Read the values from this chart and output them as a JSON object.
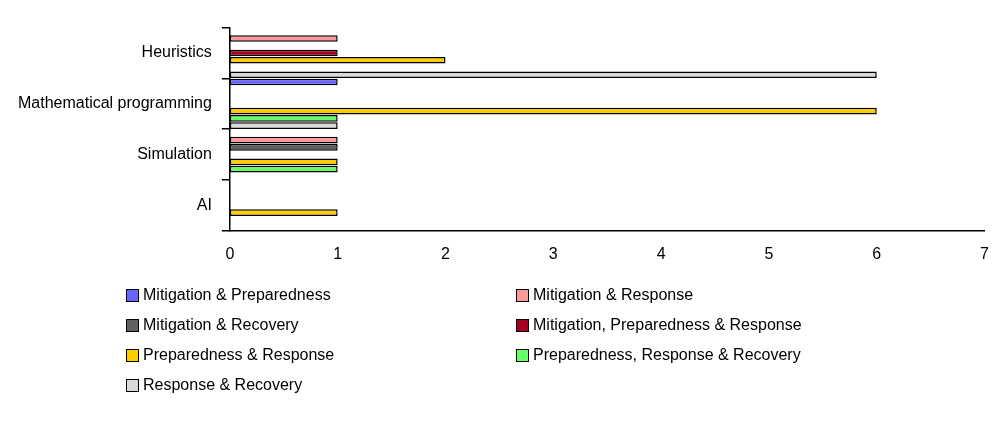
{
  "chart_data": {
    "type": "bar",
    "orientation": "horizontal",
    "categories": [
      "Heuristics",
      "Mathematical programming",
      "Simulation",
      "AI"
    ],
    "series": [
      {
        "name": "Mitigation & Preparedness",
        "color": "#6666ff",
        "values": [
          0,
          1,
          0,
          0
        ]
      },
      {
        "name": "Mitigation & Response",
        "color": "#ff9999",
        "values": [
          1,
          0,
          1,
          0
        ]
      },
      {
        "name": "Mitigation & Recovery",
        "color": "#606060",
        "values": [
          0,
          0,
          1,
          0
        ]
      },
      {
        "name": "Mitigation, Preparedness & Response",
        "color": "#a50021",
        "values": [
          1,
          0,
          0,
          0
        ]
      },
      {
        "name": "Preparedness & Response",
        "color": "#ffcc00",
        "values": [
          2,
          6,
          1,
          1
        ]
      },
      {
        "name": "Preparedness, Response & Recovery",
        "color": "#66ff66",
        "values": [
          0,
          1,
          1,
          0
        ]
      },
      {
        "name": "Response & Recovery",
        "color": "#d9d9d9",
        "values": [
          6,
          1,
          0,
          0
        ]
      }
    ],
    "xlim": [
      0,
      7
    ],
    "xticks": [
      0,
      1,
      2,
      3,
      4,
      5,
      6,
      7
    ],
    "grid": false,
    "legend": "bottom"
  }
}
